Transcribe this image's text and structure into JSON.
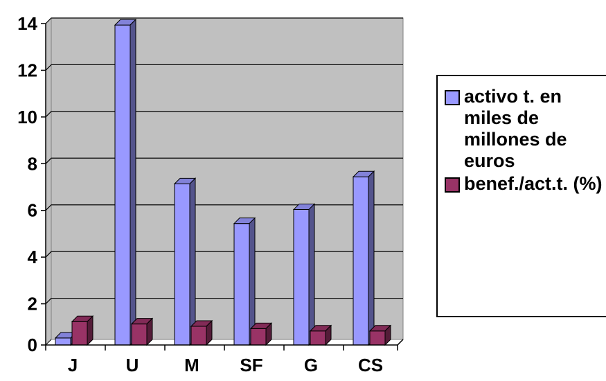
{
  "chart_data": {
    "type": "bar",
    "categories": [
      "J",
      "U",
      "M",
      "SF",
      "G",
      "CS"
    ],
    "series": [
      {
        "name": "activo t. en miles de millones de euros",
        "values": [
          0.3,
          13.7,
          6.9,
          5.2,
          5.8,
          7.2
        ],
        "color": "#9999FF"
      },
      {
        "name": "benef./act.t. (%)",
        "values": [
          1.0,
          0.9,
          0.8,
          0.7,
          0.6,
          0.6
        ],
        "color": "#993366"
      }
    ],
    "y_ticks": [
      "0",
      "2",
      "4",
      "6",
      "8",
      "10",
      "12",
      "14"
    ],
    "ylim": [
      0,
      14
    ],
    "grid": true,
    "legend_position": "right",
    "colors": {
      "plot_area": "#C0C0C0",
      "gridline": "#000000"
    }
  }
}
